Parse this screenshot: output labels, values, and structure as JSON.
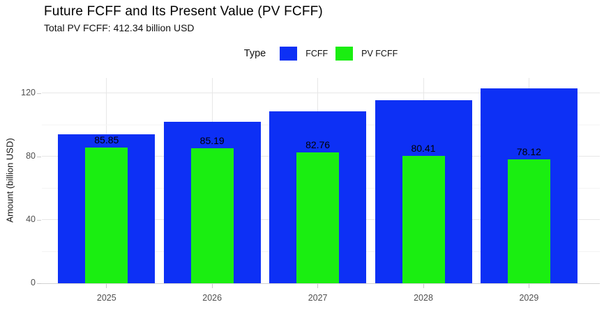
{
  "chart_data": {
    "type": "bar",
    "title": "Future FCFF and Its Present Value (PV FCFF)",
    "subtitle": "Total PV FCFF: 412.34 billion USD",
    "legend_title": "Type",
    "legend_position": "top-center",
    "categories": [
      "2025",
      "2026",
      "2027",
      "2028",
      "2029"
    ],
    "series": [
      {
        "name": "FCFF",
        "color": "#0d30f5",
        "values": [
          94.0,
          102.1,
          108.7,
          115.6,
          123.0
        ],
        "values_estimated_from_gridlines": true,
        "labels_shown": false
      },
      {
        "name": "PV FCFF",
        "color": "#1aee11",
        "values": [
          85.85,
          85.19,
          82.76,
          80.41,
          78.12
        ],
        "labels_shown": true,
        "labels": [
          "85.85",
          "85.19",
          "82.76",
          "80.41",
          "78.12"
        ]
      }
    ],
    "xlabel": "",
    "ylabel": "Amount (billion USD)",
    "yticks": [
      0,
      40,
      80,
      120
    ],
    "yticks_minor": [
      20,
      60,
      100
    ],
    "ylim": [
      0,
      129.7
    ],
    "grid": true,
    "bar_style": "overlaid: PV FCFF bar is narrower and centered on the wider FCFF bar",
    "colors": {
      "axis_text": "#4f4f4f",
      "bar_value_label": "#000000",
      "grid_major": "#e7e7e7",
      "grid_minor": "#f4f4f4",
      "axis_line": "#d2d2d2",
      "background": "#ffffff"
    }
  }
}
